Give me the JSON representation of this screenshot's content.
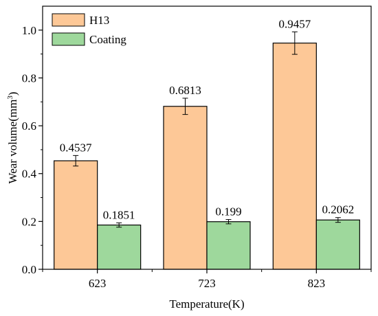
{
  "chart_data": {
    "type": "bar",
    "title": "",
    "xlabel": "Temperature(K)",
    "ylabel": "Wear volume(mm³)",
    "ylabel_parts": {
      "main": "Wear volume(mm",
      "sup": "3",
      "tail": ")"
    },
    "categories": [
      "623",
      "723",
      "823"
    ],
    "ylim": [
      0,
      1.1
    ],
    "yticks": [
      0.0,
      0.2,
      0.4,
      0.6,
      0.8,
      1.0
    ],
    "ytick_labels": [
      "0.0",
      "0.2",
      "0.4",
      "0.6",
      "0.8",
      "1.0"
    ],
    "grid": false,
    "legend_position": "top-left",
    "error_bars": true,
    "series": [
      {
        "name": "H13",
        "color": "#FDC897",
        "values": [
          0.4537,
          0.6813,
          0.9457
        ],
        "errors": [
          0.022,
          0.034,
          0.047
        ],
        "data_labels": [
          "0.4537",
          "0.6813",
          "0.9457"
        ]
      },
      {
        "name": "Coating",
        "color": "#9ED89C",
        "values": [
          0.1851,
          0.199,
          0.2062
        ],
        "errors": [
          0.009,
          0.009,
          0.01
        ],
        "data_labels": [
          "0.1851",
          "0.199",
          "0.2062"
        ]
      }
    ]
  }
}
